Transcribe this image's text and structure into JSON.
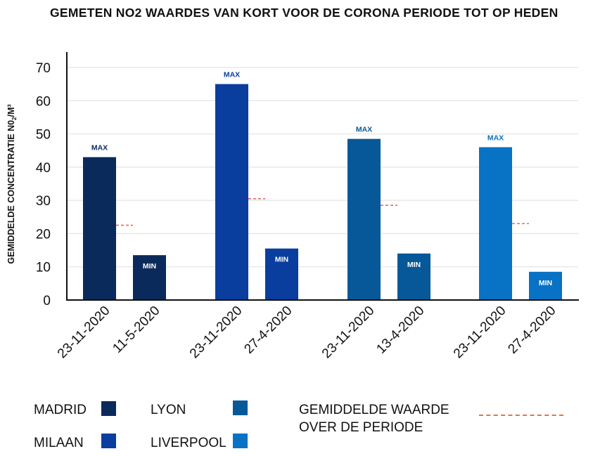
{
  "chart_data": {
    "type": "bar",
    "title": "GEMETEN NO2 WAARDES VAN KORT VOOR DE CORONA PERIODE TOT OP HEDEN",
    "ylabel": "GEMIDDELDE CONCENTRATIE NO2/M³",
    "ylabel_main": "GEMIDDELDE CONCENTRATIE N0",
    "ylabel_sub": "2",
    "ylabel_tail": "/M³",
    "ylim": [
      0,
      70
    ],
    "yticks": [
      0,
      10,
      20,
      30,
      40,
      50,
      60,
      70
    ],
    "grid": true,
    "legend_position": "bottom",
    "groups": [
      {
        "city": "MADRID",
        "color": "#0b2a5c",
        "average": 22.5,
        "bars": [
          {
            "date": "23-11-2020",
            "value": 43,
            "label": "MAX"
          },
          {
            "date": "11-5-2020",
            "value": 13.5,
            "label": "MIN"
          }
        ]
      },
      {
        "city": "MILAAN",
        "color": "#0a3e9e",
        "average": 30.5,
        "bars": [
          {
            "date": "23-11-2020",
            "value": 65,
            "label": "MAX"
          },
          {
            "date": "27-4-2020",
            "value": 15.5,
            "label": "MIN"
          }
        ]
      },
      {
        "city": "LYON",
        "color": "#075899",
        "average": 28.5,
        "bars": [
          {
            "date": "23-11-2020",
            "value": 48.5,
            "label": "MAX"
          },
          {
            "date": "13-4-2020",
            "value": 14,
            "label": "MIN"
          }
        ]
      },
      {
        "city": "LIVERPOOL",
        "color": "#0872c4",
        "average": 23,
        "bars": [
          {
            "date": "23-11-2020",
            "value": 46,
            "label": "MAX"
          },
          {
            "date": "27-4-2020",
            "value": 8.5,
            "label": "MIN"
          }
        ]
      }
    ],
    "average_line": {
      "label": "GEMIDDELDE WAARDE OVER DE PERIODE",
      "color": "#e6704e"
    }
  },
  "legend": {
    "madrid": "MADRID",
    "milaan": "MILAAN",
    "lyon": "LYON",
    "liverpool": "LIVERPOOL",
    "average_line1": "GEMIDDELDE WAARDE",
    "average_line2": "OVER DE PERIODE"
  },
  "colors": {
    "madrid": "#0b2a5c",
    "milaan": "#0a3e9e",
    "lyon": "#075899",
    "liverpool": "#0872c4",
    "average": "#e6704e",
    "grid": "#dddddd",
    "axis": "#111111"
  }
}
